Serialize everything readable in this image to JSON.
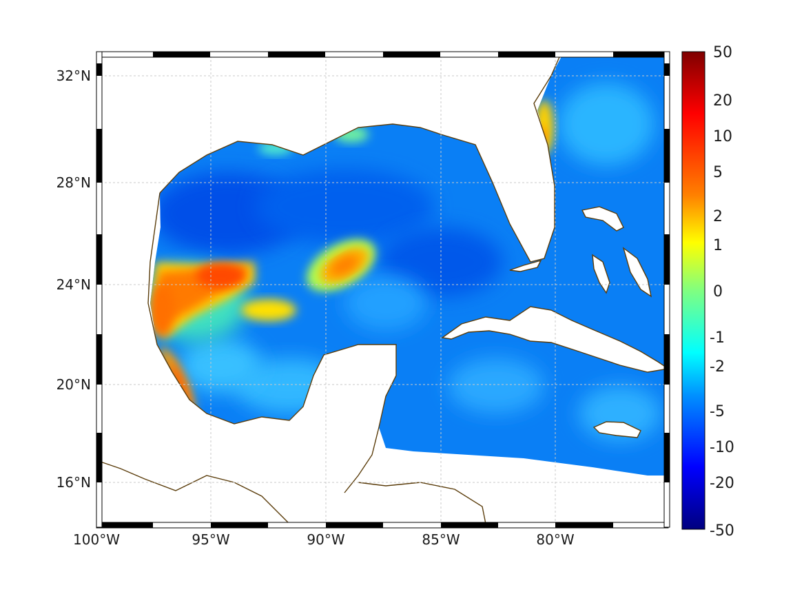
{
  "map": {
    "region": "Gulf of Mexico / Caribbean",
    "x_ticks": [
      "100°W",
      "95°W",
      "90°W",
      "85°W",
      "80°W"
    ],
    "y_ticks": [
      "32°N",
      "28°N",
      "24°N",
      "20°N",
      "16°N"
    ],
    "lon_range": [
      -100,
      -75
    ],
    "lat_range": [
      14.2,
      33
    ],
    "grid": true,
    "colormap": "jet",
    "coast_color": "#5a3c0a"
  },
  "colorbar": {
    "labels": [
      "50",
      "20",
      "10",
      "5",
      "2",
      "1",
      "0",
      "-1",
      "-2",
      "-5",
      "-10",
      "-20",
      "-50"
    ]
  }
}
